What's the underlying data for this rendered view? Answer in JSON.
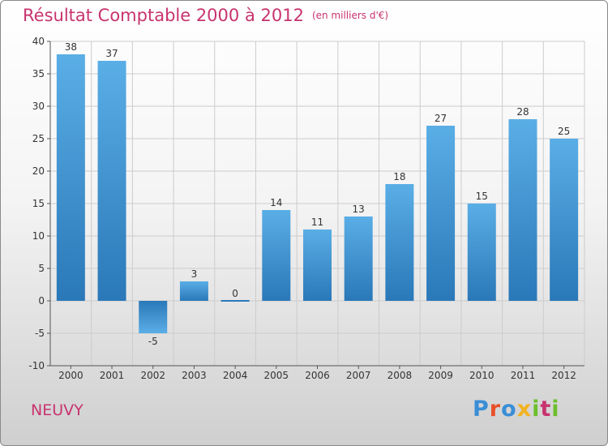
{
  "chart_data": {
    "type": "bar",
    "title": "Résultat Comptable 2000 à 2012",
    "unit_label": "(en milliers d'€)",
    "categories": [
      "2000",
      "2001",
      "2002",
      "2003",
      "2004",
      "2005",
      "2006",
      "2007",
      "2008",
      "2009",
      "2010",
      "2011",
      "2012"
    ],
    "values": [
      38,
      37,
      -5,
      3,
      0,
      14,
      11,
      13,
      18,
      27,
      15,
      28,
      25
    ],
    "ylim": [
      -10,
      40
    ],
    "yticks": [
      -10,
      -5,
      0,
      5,
      10,
      15,
      20,
      25,
      30,
      35,
      40
    ],
    "grid": true,
    "xlabel": "",
    "ylabel": ""
  },
  "footer": {
    "commune": "NEUVY",
    "logo": [
      "P",
      "r",
      "o",
      "x",
      "i",
      "t",
      "i"
    ]
  },
  "colors": {
    "title": "#c8336e",
    "bar_top": "#5aaee6",
    "bar_bottom": "#2a78b8",
    "grid": "#cccccc",
    "axis": "#555555",
    "logo": [
      "#3a8ed6",
      "#e8502a",
      "#3a8ed6",
      "#f2b21f",
      "#6cbf2a",
      "#c8336e",
      "#6cbf2a"
    ]
  }
}
